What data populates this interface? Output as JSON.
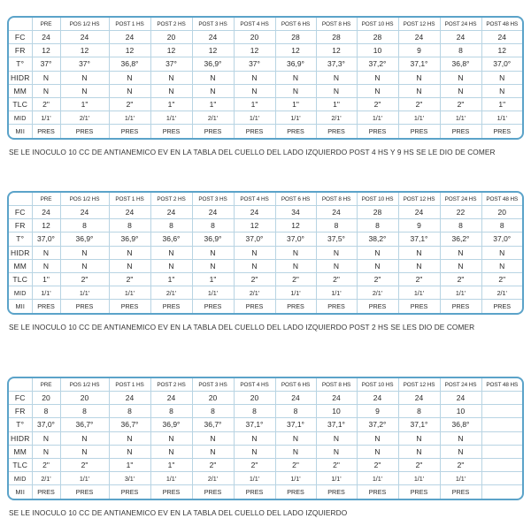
{
  "headers": [
    "",
    "PRE",
    "POS 1/2 HS",
    "POST 1 HS",
    "POST 2 HS",
    "POST 3 HS",
    "POST 4 HS",
    "POST 6 HS",
    "POST 8 HS",
    "POST 10 HS",
    "POST 12 HS",
    "POST 24 HS",
    "POST 48 HS"
  ],
  "tables": [
    {
      "rows": [
        {
          "label": "FC",
          "cells": [
            "24",
            "24",
            "24",
            "20",
            "24",
            "20",
            "28",
            "28",
            "28",
            "24",
            "24",
            "24"
          ]
        },
        {
          "label": "FR",
          "cells": [
            "12",
            "12",
            "12",
            "12",
            "12",
            "12",
            "12",
            "12",
            "10",
            "9",
            "8",
            "12"
          ]
        },
        {
          "label": "T°",
          "cells": [
            "37°",
            "37°",
            "36,8°",
            "37°",
            "36,9°",
            "37°",
            "36,9°",
            "37,3°",
            "37,2°",
            "37,1°",
            "36,8°",
            "37,0°"
          ]
        },
        {
          "label": "HIDR",
          "cells": [
            "N",
            "N",
            "N",
            "N",
            "N",
            "N",
            "N",
            "N",
            "N",
            "N",
            "N",
            "N"
          ]
        },
        {
          "label": "MM",
          "cells": [
            "N",
            "N",
            "N",
            "N",
            "N",
            "N",
            "N",
            "N",
            "N",
            "N",
            "N",
            "N"
          ]
        },
        {
          "label": "TLC",
          "cells": [
            "2\"",
            "1\"",
            "2\"",
            "1\"",
            "1\"",
            "1\"",
            "1\"",
            "1\"",
            "2\"",
            "2\"",
            "2\"",
            "1\""
          ]
        },
        {
          "label": "MID",
          "cells": [
            "1/1'",
            "2/1'",
            "1/1'",
            "1/1'",
            "2/1'",
            "1/1'",
            "1/1'",
            "2/1'",
            "1/1'",
            "1/1'",
            "1/1'",
            "1/1'"
          ]
        },
        {
          "label": "MII",
          "cells": [
            "PRES",
            "PRES",
            "PRES",
            "PRES",
            "PRES",
            "PRES",
            "PRES",
            "PRES",
            "PRES",
            "PRES",
            "PRES",
            "PRES"
          ]
        }
      ],
      "caption": "SE LE INOCULO 10 CC DE ANTIANEMICO EV EN LA TABLA DEL CUELLO DEL LADO IZQUIERDO POST 4 HS Y 9 HS SE LE DIO DE COMER"
    },
    {
      "rows": [
        {
          "label": "FC",
          "cells": [
            "24",
            "24",
            "24",
            "24",
            "24",
            "24",
            "34",
            "24",
            "28",
            "24",
            "22",
            "20"
          ]
        },
        {
          "label": "FR",
          "cells": [
            "12",
            "8",
            "8",
            "8",
            "8",
            "12",
            "12",
            "8",
            "8",
            "9",
            "8",
            "8"
          ]
        },
        {
          "label": "T°",
          "cells": [
            "37,0°",
            "36,9°",
            "36,9°",
            "36,6°",
            "36,9°",
            "37,0°",
            "37,0°",
            "37,5°",
            "38,2°",
            "37,1°",
            "36,2°",
            "37,0°"
          ]
        },
        {
          "label": "HIDR",
          "cells": [
            "N",
            "N",
            "N",
            "N",
            "N",
            "N",
            "N",
            "N",
            "N",
            "N",
            "N",
            "N"
          ]
        },
        {
          "label": "MM",
          "cells": [
            "N",
            "N",
            "N",
            "N",
            "N",
            "N",
            "N",
            "N",
            "N",
            "N",
            "N",
            "N"
          ]
        },
        {
          "label": "TLC",
          "cells": [
            "1\"",
            "2\"",
            "2\"",
            "1\"",
            "1\"",
            "2\"",
            "2\"",
            "2\"",
            "2\"",
            "2\"",
            "2\"",
            "2\""
          ]
        },
        {
          "label": "MID",
          "cells": [
            "1/1'",
            "1/1'",
            "1/1'",
            "2/1'",
            "1/1'",
            "2/1'",
            "1/1'",
            "1/1'",
            "2/1'",
            "1/1'",
            "1/1'",
            "2/1'"
          ]
        },
        {
          "label": "MII",
          "cells": [
            "PRES",
            "PRES",
            "PRES",
            "PRES",
            "PRES",
            "PRES",
            "PRES",
            "PRES",
            "PRES",
            "PRES",
            "PRES",
            "PRES"
          ]
        }
      ],
      "caption": "SE LE INOCULO 10 CC DE ANTIANEMICO EV EN LA TABLA DEL CUELLO DEL LADO IZQUIERDO POST 2 HS SE LES DIO DE COMER"
    },
    {
      "rows": [
        {
          "label": "FC",
          "cells": [
            "20",
            "20",
            "24",
            "24",
            "20",
            "20",
            "24",
            "24",
            "24",
            "24",
            "24",
            ""
          ]
        },
        {
          "label": "FR",
          "cells": [
            "8",
            "8",
            "8",
            "8",
            "8",
            "8",
            "8",
            "10",
            "9",
            "8",
            "10",
            ""
          ]
        },
        {
          "label": "T°",
          "cells": [
            "37,0°",
            "36,7°",
            "36,7°",
            "36,9°",
            "36,7°",
            "37,1°",
            "37,1°",
            "37,1°",
            "37,2°",
            "37,1°",
            "36,8°",
            ""
          ]
        },
        {
          "label": "HIDR",
          "cells": [
            "N",
            "N",
            "N",
            "N",
            "N",
            "N",
            "N",
            "N",
            "N",
            "N",
            "N",
            ""
          ]
        },
        {
          "label": "MM",
          "cells": [
            "N",
            "N",
            "N",
            "N",
            "N",
            "N",
            "N",
            "N",
            "N",
            "N",
            "N",
            ""
          ]
        },
        {
          "label": "TLC",
          "cells": [
            "2\"",
            "2\"",
            "1\"",
            "1\"",
            "2\"",
            "2\"",
            "2\"",
            "2\"",
            "2\"",
            "2\"",
            "2\"",
            ""
          ]
        },
        {
          "label": "MID",
          "cells": [
            "2/1'",
            "1/1'",
            "3/1'",
            "1/1'",
            "2/1'",
            "1/1'",
            "1/1'",
            "1/1'",
            "1/1'",
            "1/1'",
            "1/1'",
            ""
          ]
        },
        {
          "label": "MII",
          "cells": [
            "PRES",
            "PRES",
            "PRES",
            "PRES",
            "PRES",
            "PRES",
            "PRES",
            "PRES",
            "PRES",
            "PRES",
            "PRES",
            ""
          ]
        }
      ],
      "caption": "SE LE INOCULO 10 CC DE ANTIANEMICO EV EN LA TABLA DEL CUELLO DEL LADO IZQUIERDO"
    }
  ]
}
